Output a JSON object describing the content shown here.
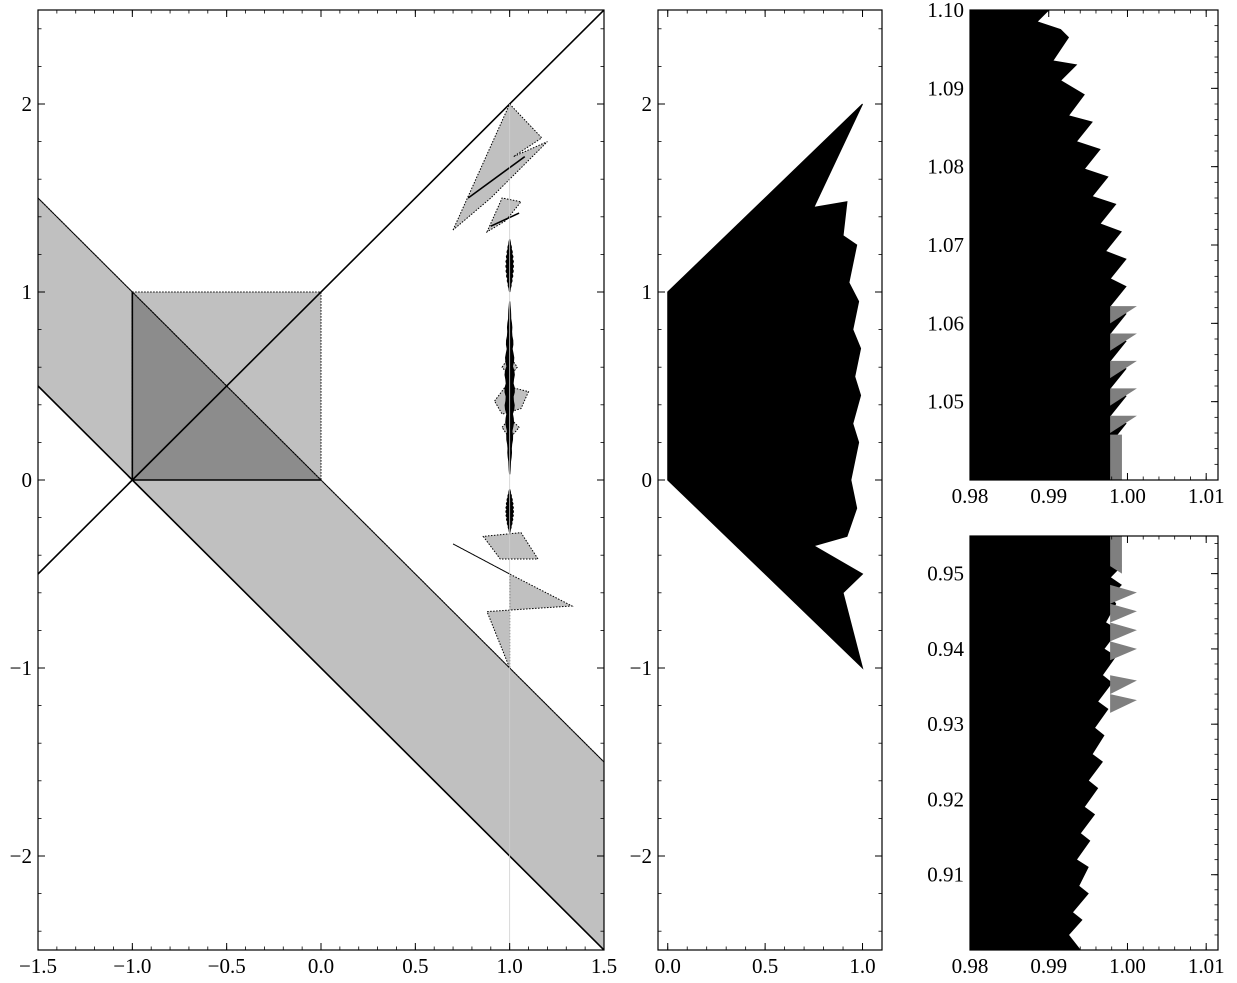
{
  "figure": {
    "colors": {
      "light_fill": "#c0c0c0",
      "dark_fill": "#8c8c8c",
      "mid_fill": "#7f7f7f",
      "ink": "#000000",
      "frame": "#000000"
    }
  },
  "chart_data": [
    {
      "id": "panel-left",
      "type": "area",
      "title": "",
      "xlabel": "",
      "ylabel": "",
      "xlim": [
        -1.5,
        1.5
      ],
      "ylim": [
        -2.5,
        2.5
      ],
      "grid": false,
      "x_ticks": [
        -1.5,
        -1.0,
        -0.5,
        0.0,
        0.5,
        1.0,
        1.5
      ],
      "x_tick_labels": [
        "−1.5",
        "−1.0",
        "−0.5",
        "0.0",
        "0.5",
        "1.0",
        "1.5"
      ],
      "y_ticks": [
        -2,
        -1,
        0,
        1,
        2
      ],
      "y_tick_labels": [
        "−2",
        "−1",
        "0",
        "1",
        "2"
      ],
      "shapes": [
        {
          "name": "diagonal-band",
          "fill": "light",
          "points": [
            [
              -1.5,
              1.5
            ],
            [
              -1.5,
              0.5
            ],
            [
              1.5,
              -2.5
            ],
            [
              1.5,
              -1.5
            ]
          ]
        },
        {
          "name": "unit-square",
          "fill": "light",
          "points": [
            [
              -1,
              0
            ],
            [
              0,
              0
            ],
            [
              0,
              1
            ],
            [
              -1,
              1
            ]
          ]
        },
        {
          "name": "overlap-triangle",
          "fill": "dark",
          "points": [
            [
              -1,
              0
            ],
            [
              0,
              0
            ],
            [
              -1,
              1
            ]
          ]
        },
        {
          "name": "upper-kite",
          "fill": "light",
          "points": [
            [
              0.7,
              1.33
            ],
            [
              1.0,
              2.0
            ],
            [
              1.17,
              1.82
            ],
            [
              1.02,
              1.72
            ],
            [
              1.2,
              1.8
            ],
            [
              0.9,
              1.5
            ]
          ]
        },
        {
          "name": "upper-kite-small",
          "fill": "light",
          "points": [
            [
              0.88,
              1.32
            ],
            [
              0.96,
              1.5
            ],
            [
              1.06,
              1.48
            ],
            [
              0.98,
              1.38
            ]
          ]
        },
        {
          "name": "lower-kite",
          "fill": "light",
          "points": [
            [
              0.7,
              -0.34
            ],
            [
              1.0,
              -0.5
            ],
            [
              1.0,
              -1.0
            ],
            [
              0.88,
              -0.7
            ],
            [
              1.33,
              -0.67
            ],
            [
              1.0,
              -0.5
            ]
          ]
        },
        {
          "name": "lower-kite-small",
          "fill": "light",
          "points": [
            [
              0.86,
              -0.3
            ],
            [
              0.95,
              -0.42
            ],
            [
              1.15,
              -0.42
            ],
            [
              1.06,
              -0.28
            ]
          ]
        },
        {
          "name": "mid-diamond",
          "fill": "light",
          "points": [
            [
              0.92,
              0.42
            ],
            [
              0.98,
              0.5
            ],
            [
              1.1,
              0.47
            ],
            [
              1.06,
              0.38
            ],
            [
              0.96,
              0.35
            ]
          ]
        },
        {
          "name": "mid-diamond-small",
          "fill": "light",
          "points": [
            [
              0.96,
              0.6
            ],
            [
              1.0,
              0.66
            ],
            [
              1.04,
              0.6
            ],
            [
              1.0,
              0.55
            ]
          ]
        },
        {
          "name": "mid-diamond-low",
          "fill": "light",
          "points": [
            [
              0.96,
              0.28
            ],
            [
              1.0,
              0.33
            ],
            [
              1.05,
              0.28
            ],
            [
              1.0,
              0.22
            ]
          ]
        }
      ],
      "lines": [
        {
          "name": "line-y-equals-x-plus-1",
          "points": [
            [
              -1.5,
              -0.5
            ],
            [
              1.5,
              2.5
            ]
          ]
        },
        {
          "name": "line-lower-edge",
          "points": [
            [
              -1.5,
              0.5
            ],
            [
              1.5,
              -2.5
            ]
          ]
        },
        {
          "name": "line-upper-edge",
          "points": [
            [
              -1.5,
              1.5
            ],
            [
              1.5,
              -1.5
            ]
          ],
          "style": "dotted"
        },
        {
          "name": "square-left-edge",
          "points": [
            [
              -1,
              0
            ],
            [
              -1,
              1
            ]
          ]
        },
        {
          "name": "square-bottom-edge",
          "points": [
            [
              -1,
              0
            ],
            [
              0,
              0
            ]
          ]
        },
        {
          "name": "upper-kite-diagonal",
          "points": [
            [
              0.78,
              1.5
            ],
            [
              1.08,
              1.72
            ]
          ]
        },
        {
          "name": "upper-kite-diagonal-2",
          "points": [
            [
              0.9,
              1.35
            ],
            [
              1.05,
              1.42
            ]
          ]
        }
      ],
      "spines": [
        {
          "name": "upper-spine",
          "x": 1.0,
          "y_top": 1.28,
          "y_bottom": 1.0,
          "halfwidth": 0.02
        },
        {
          "name": "middle-spine",
          "x": 1.0,
          "y_top": 0.95,
          "y_bottom": 0.03,
          "halfwidth": 0.025
        },
        {
          "name": "lower-spine",
          "x": 1.0,
          "y_top": -0.05,
          "y_bottom": -0.28,
          "halfwidth": 0.02
        }
      ]
    },
    {
      "id": "panel-middle",
      "type": "area",
      "title": "",
      "xlabel": "",
      "ylabel": "",
      "xlim": [
        -0.05,
        1.1
      ],
      "ylim": [
        -2.5,
        2.5
      ],
      "grid": false,
      "x_ticks": [
        0.0,
        0.5,
        1.0
      ],
      "x_tick_labels": [
        "0.0",
        "0.5",
        "1.0"
      ],
      "y_ticks": [
        -2,
        -1,
        0,
        1,
        2
      ],
      "y_tick_labels": [
        "−2",
        "−1",
        "0",
        "1",
        "2"
      ],
      "region": [
        [
          0.0,
          0.0
        ],
        [
          0.0,
          1.0
        ],
        [
          1.0,
          2.0
        ],
        [
          0.75,
          1.45
        ],
        [
          0.92,
          1.48
        ],
        [
          0.9,
          1.3
        ],
        [
          0.97,
          1.25
        ],
        [
          0.93,
          1.05
        ],
        [
          0.98,
          0.95
        ],
        [
          0.95,
          0.8
        ],
        [
          0.99,
          0.7
        ],
        [
          0.96,
          0.55
        ],
        [
          0.99,
          0.45
        ],
        [
          0.95,
          0.3
        ],
        [
          0.98,
          0.2
        ],
        [
          0.94,
          0.0
        ],
        [
          0.97,
          -0.15
        ],
        [
          0.92,
          -0.3
        ],
        [
          0.75,
          -0.35
        ],
        [
          1.0,
          -0.5
        ],
        [
          0.9,
          -0.6
        ],
        [
          1.0,
          -1.0
        ]
      ]
    },
    {
      "id": "panel-top-right",
      "type": "area",
      "title": "",
      "xlabel": "",
      "ylabel": "",
      "xlim": [
        0.98,
        1.0115
      ],
      "ylim": [
        1.04,
        1.1
      ],
      "grid": false,
      "x_ticks": [
        0.98,
        0.99,
        1.0,
        1.01
      ],
      "x_tick_labels": [
        "0.98",
        "0.99",
        "1.00",
        "1.01"
      ],
      "y_ticks": [
        1.05,
        1.06,
        1.07,
        1.08,
        1.09,
        1.1
      ],
      "y_tick_labels": [
        "1.05",
        "1.06",
        "1.07",
        "1.08",
        "1.09",
        "1.10"
      ],
      "region": [
        [
          0.98,
          1.04
        ],
        [
          0.98,
          1.1
        ],
        [
          0.99,
          1.1
        ],
        [
          0.9885,
          1.0985
        ],
        [
          0.9915,
          1.0975
        ],
        [
          0.9925,
          1.0965
        ],
        [
          0.9905,
          1.0935
        ],
        [
          0.9935,
          1.093
        ],
        [
          0.9915,
          1.091
        ],
        [
          0.9945,
          1.0892
        ],
        [
          0.9925,
          1.0865
        ],
        [
          0.9955,
          1.0857
        ],
        [
          0.9935,
          1.0832
        ],
        [
          0.9965,
          1.0822
        ],
        [
          0.9945,
          1.0797
        ],
        [
          0.9975,
          1.0787
        ],
        [
          0.9955,
          1.0762
        ],
        [
          0.9985,
          1.0752
        ],
        [
          0.9965,
          1.0727
        ],
        [
          0.9992,
          1.0717
        ],
        [
          0.9972,
          1.0692
        ],
        [
          0.9998,
          1.0682
        ],
        [
          0.9978,
          1.0657
        ],
        [
          0.9998,
          1.0647
        ],
        [
          0.9978,
          1.0622
        ],
        [
          0.9998,
          1.0612
        ],
        [
          0.9978,
          1.0587
        ],
        [
          0.9998,
          1.0577
        ],
        [
          0.9978,
          1.0552
        ],
        [
          0.9998,
          1.0542
        ],
        [
          0.9978,
          1.0517
        ],
        [
          0.9998,
          1.0507
        ],
        [
          0.9978,
          1.0482
        ],
        [
          0.9998,
          1.0472
        ],
        [
          0.9978,
          1.0447
        ],
        [
          0.9978,
          1.04
        ]
      ],
      "gray_region": [
        [
          0.9978,
          1.04
        ],
        [
          0.9978,
          1.0458
        ],
        [
          0.9993,
          1.0458
        ],
        [
          0.9993,
          1.04
        ]
      ],
      "gray_teeth": [
        {
          "tip": [
            1.0012,
            1.0622
          ],
          "base_top": 1.0622,
          "base_bottom": 1.06
        },
        {
          "tip": [
            1.0012,
            1.0587
          ],
          "base_top": 1.0587,
          "base_bottom": 1.0565
        },
        {
          "tip": [
            1.0012,
            1.0552
          ],
          "base_top": 1.0552,
          "base_bottom": 1.053
        },
        {
          "tip": [
            1.0012,
            1.0517
          ],
          "base_top": 1.0517,
          "base_bottom": 1.0495
        },
        {
          "tip": [
            1.0012,
            1.0482
          ],
          "base_top": 1.0482,
          "base_bottom": 1.046
        }
      ]
    },
    {
      "id": "panel-bottom-right",
      "type": "area",
      "title": "",
      "xlabel": "",
      "ylabel": "",
      "xlim": [
        0.98,
        1.0115
      ],
      "ylim": [
        0.9,
        0.955
      ],
      "grid": false,
      "x_ticks": [
        0.98,
        0.99,
        1.0,
        1.01
      ],
      "x_tick_labels": [
        "0.98",
        "0.99",
        "1.00",
        "1.01"
      ],
      "y_ticks": [
        0.91,
        0.92,
        0.93,
        0.94,
        0.95
      ],
      "y_tick_labels": [
        "0.91",
        "0.92",
        "0.93",
        "0.94",
        "0.95"
      ],
      "region": [
        [
          0.98,
          0.9
        ],
        [
          0.98,
          0.955
        ],
        [
          0.9978,
          0.955
        ],
        [
          0.9978,
          0.952
        ],
        [
          0.9992,
          0.951
        ],
        [
          0.9978,
          0.9495
        ],
        [
          0.9992,
          0.9485
        ],
        [
          0.9978,
          0.947
        ],
        [
          0.9985,
          0.946
        ],
        [
          0.9972,
          0.9435
        ],
        [
          0.9988,
          0.9425
        ],
        [
          0.997,
          0.94
        ],
        [
          0.9985,
          0.939
        ],
        [
          0.9968,
          0.9365
        ],
        [
          0.998,
          0.9355
        ],
        [
          0.9962,
          0.933
        ],
        [
          0.9975,
          0.932
        ],
        [
          0.9958,
          0.9295
        ],
        [
          0.997,
          0.9285
        ],
        [
          0.9955,
          0.926
        ],
        [
          0.9968,
          0.925
        ],
        [
          0.995,
          0.9225
        ],
        [
          0.9962,
          0.9215
        ],
        [
          0.9945,
          0.919
        ],
        [
          0.9958,
          0.918
        ],
        [
          0.994,
          0.9155
        ],
        [
          0.9952,
          0.9145
        ],
        [
          0.9935,
          0.912
        ],
        [
          0.995,
          0.911
        ],
        [
          0.9938,
          0.9085
        ],
        [
          0.995,
          0.9075
        ],
        [
          0.993,
          0.905
        ],
        [
          0.9942,
          0.904
        ],
        [
          0.9925,
          0.902
        ],
        [
          0.994,
          0.9
        ],
        [
          0.98,
          0.9
        ]
      ],
      "gray_region": [
        [
          0.9978,
          0.955
        ],
        [
          0.9978,
          0.951
        ],
        [
          0.9993,
          0.95
        ],
        [
          0.9993,
          0.955
        ]
      ],
      "gray_teeth": [
        {
          "tip": [
            1.0012,
            0.9475
          ],
          "base_top": 0.9485,
          "base_bottom": 0.946
        },
        {
          "tip": [
            1.0012,
            0.945
          ],
          "base_top": 0.946,
          "base_bottom": 0.9435
        },
        {
          "tip": [
            1.0012,
            0.9425
          ],
          "base_top": 0.9435,
          "base_bottom": 0.941
        },
        {
          "tip": [
            1.0012,
            0.94
          ],
          "base_top": 0.941,
          "base_bottom": 0.9385
        },
        {
          "tip": [
            1.0012,
            0.9358
          ],
          "base_top": 0.9365,
          "base_bottom": 0.934
        },
        {
          "tip": [
            1.0012,
            0.9332
          ],
          "base_top": 0.934,
          "base_bottom": 0.9315
        }
      ]
    }
  ]
}
